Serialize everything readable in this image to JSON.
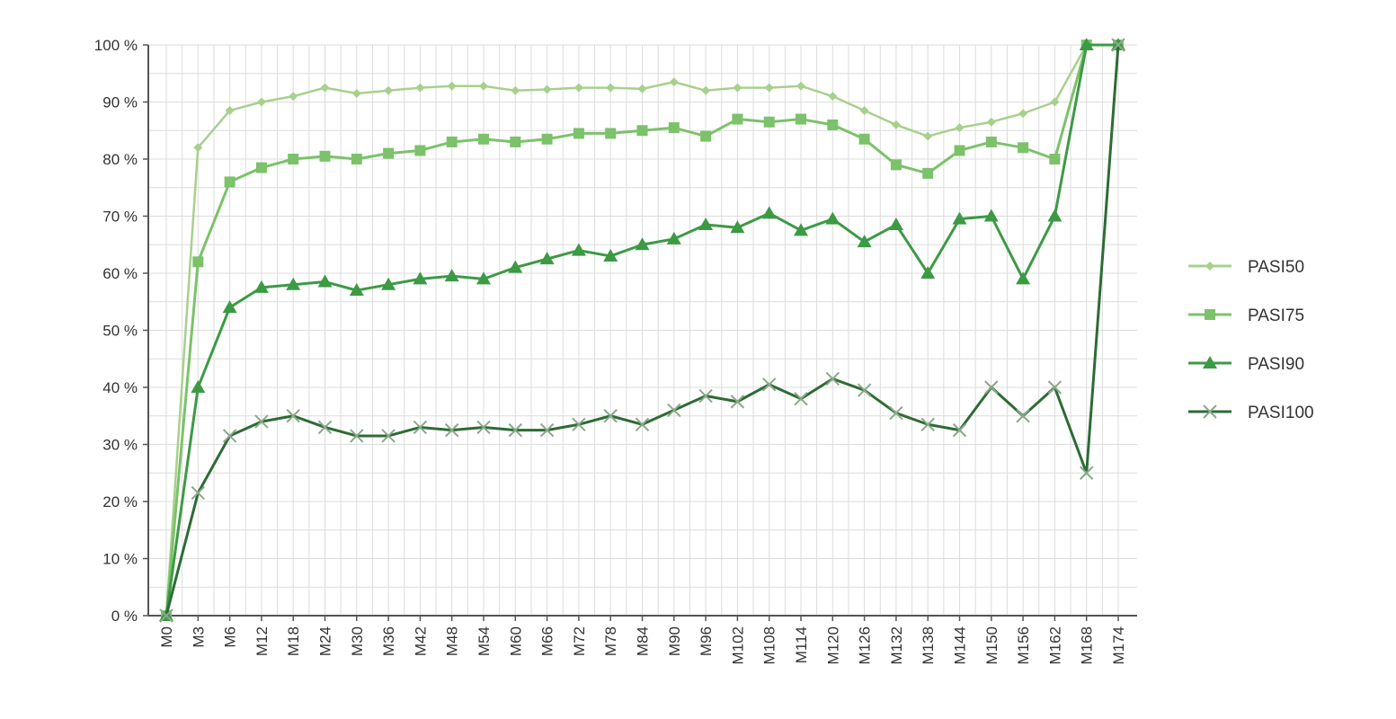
{
  "chart_data": {
    "type": "line",
    "title": "",
    "xlabel": "",
    "ylabel": "",
    "ylim": [
      0,
      100
    ],
    "y_ticks": [
      "0 %",
      "10 %",
      "20 %",
      "30 %",
      "40 %",
      "50 %",
      "60 %",
      "70 %",
      "80 %",
      "90 %",
      "100 %"
    ],
    "grid": true,
    "legend_position": "right",
    "categories": [
      "M0",
      "M3",
      "M6",
      "M12",
      "M18",
      "M24",
      "M30",
      "M36",
      "M42",
      "M48",
      "M54",
      "M60",
      "M66",
      "M72",
      "M78",
      "M84",
      "M90",
      "M96",
      "M102",
      "M108",
      "M114",
      "M120",
      "M126",
      "M132",
      "M138",
      "M144",
      "M150",
      "M156",
      "M162",
      "M168",
      "M174"
    ],
    "series": [
      {
        "name": "PASI50",
        "color": "#a8d08d",
        "marker": "diamond",
        "values": [
          0,
          82,
          88.5,
          90,
          91,
          92.5,
          91.5,
          92,
          92.5,
          92.8,
          92.8,
          92,
          92.2,
          92.5,
          92.5,
          92.3,
          93.5,
          92,
          92.5,
          92.5,
          92.8,
          91,
          88.5,
          86,
          84,
          85.5,
          86.5,
          88,
          90,
          100,
          100
        ]
      },
      {
        "name": "PASI75",
        "color": "#7bc26a",
        "marker": "square",
        "values": [
          0,
          62,
          76,
          78.5,
          80,
          80.5,
          80,
          81,
          81.5,
          83,
          83.5,
          83,
          83.5,
          84.5,
          84.5,
          85,
          85.5,
          84,
          87,
          86.5,
          87,
          86,
          83.5,
          79,
          77.5,
          81.5,
          83,
          82,
          80,
          100,
          100
        ]
      },
      {
        "name": "PASI90",
        "color": "#3c9a45",
        "marker": "triangle",
        "values": [
          0,
          40,
          54,
          57.5,
          58,
          58.5,
          57,
          58,
          59,
          59.5,
          59,
          61,
          62.5,
          64,
          63,
          65,
          66,
          68.5,
          68,
          70.5,
          67.5,
          69.5,
          65.5,
          68.5,
          60,
          69.5,
          70,
          59,
          70,
          100,
          100
        ]
      },
      {
        "name": "PASI100",
        "color": "#2e6b35",
        "marker": "x",
        "values": [
          0,
          21.5,
          31.5,
          34,
          35,
          33,
          31.5,
          31.5,
          33,
          32.5,
          33,
          32.5,
          32.5,
          33.5,
          35,
          33.5,
          36,
          38.5,
          37.5,
          40.5,
          38,
          41.5,
          39.5,
          35.5,
          33.5,
          32.5,
          40,
          35,
          40,
          25,
          100
        ]
      }
    ]
  }
}
